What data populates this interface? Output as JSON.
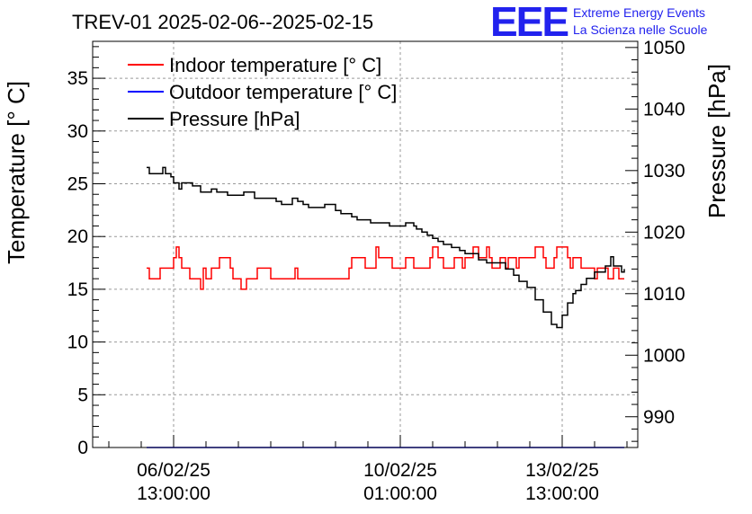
{
  "chart_data": {
    "type": "line",
    "title": "TREV-01 2025-02-06--2025-02-15",
    "ylabel_left": "Temperature [° C]",
    "ylabel_right": "Pressure [hPa]",
    "ylim_left": [
      0,
      38.5
    ],
    "ylim_right": [
      985,
      1051
    ],
    "yticks_left": [
      "0",
      "5",
      "10",
      "15",
      "20",
      "25",
      "30",
      "35"
    ],
    "yticks_right": [
      "990",
      "1000",
      "1010",
      "1020",
      "1030",
      "1040",
      "1050"
    ],
    "x_range_hours": [
      -30,
      172
    ],
    "xticks": [
      {
        "hours": 0,
        "date": "06/02/25",
        "time": "13:00:00"
      },
      {
        "hours": 84,
        "date": "10/02/25",
        "time": "01:00:00"
      },
      {
        "hours": 144,
        "date": "13/02/25",
        "time": "13:00:00"
      }
    ],
    "grid": true,
    "legend_position": "top-left",
    "series": [
      {
        "name": "Indoor temperature [° C]",
        "color": "#ff0000",
        "axis": "left",
        "x": [
          -10,
          -9,
          -8,
          -5,
          -4,
          -3,
          0,
          1,
          2,
          3,
          4,
          6,
          7,
          10,
          11,
          12,
          13,
          14,
          16,
          17,
          20,
          21,
          22,
          25,
          26,
          27,
          30,
          31,
          34,
          35,
          36,
          44,
          45,
          46,
          48,
          49,
          64,
          65,
          66,
          70,
          71,
          72,
          74,
          75,
          76,
          80,
          81,
          82,
          85,
          86,
          88,
          89,
          94,
          95,
          96,
          98,
          99,
          100,
          103,
          104,
          106,
          107,
          108,
          110,
          111,
          113,
          114,
          116,
          117,
          118,
          120,
          121,
          122,
          123,
          124,
          126,
          127,
          128,
          129,
          130,
          133,
          134,
          136,
          137,
          138,
          140,
          141,
          142,
          145,
          146,
          147,
          148,
          150,
          151,
          152,
          155,
          156,
          157,
          160,
          161,
          163,
          164,
          165,
          166,
          167
        ],
        "y": [
          17,
          16,
          16,
          17,
          17,
          17,
          18,
          19,
          18,
          17,
          17,
          16,
          16,
          15,
          17,
          16,
          16,
          17,
          17,
          18,
          18,
          17,
          16,
          15,
          15,
          16,
          16,
          17,
          17,
          17,
          16,
          16,
          17,
          16,
          16,
          16,
          16,
          17,
          18,
          18,
          17,
          17,
          17,
          19,
          18,
          18,
          17,
          17,
          17,
          18,
          18,
          17,
          17,
          18,
          19,
          18,
          18,
          17,
          17,
          18,
          18,
          17,
          18,
          18,
          19,
          18,
          18,
          19,
          18,
          17,
          17,
          18,
          18,
          17,
          18,
          18,
          17,
          18,
          18,
          18,
          18,
          19,
          19,
          18,
          17,
          17,
          18,
          19,
          19,
          18,
          17,
          18,
          18,
          17,
          17,
          17,
          16,
          17,
          17,
          16,
          17,
          17,
          16,
          16,
          16
        ]
      },
      {
        "name": "Outdoor temperature [° C]",
        "color": "#0000ff",
        "axis": "left",
        "x": [
          -10,
          167
        ],
        "y": [
          0,
          0
        ]
      },
      {
        "name": "Pressure [hPa]",
        "color": "#000000",
        "axis": "right",
        "x": [
          -10,
          -9,
          -6,
          -4,
          -3,
          -1,
          0,
          2,
          3,
          6,
          7,
          10,
          14,
          16,
          20,
          24,
          26,
          30,
          33,
          38,
          40,
          43,
          44,
          46,
          48,
          50,
          52,
          56,
          60,
          62,
          64,
          66,
          68,
          70,
          73,
          76,
          80,
          84,
          86,
          89,
          90,
          92,
          94,
          96,
          98,
          100,
          103,
          104,
          106,
          108,
          110,
          113,
          116,
          120,
          123,
          126,
          128,
          131,
          134,
          137,
          140,
          142,
          144,
          146,
          148,
          149,
          151,
          153,
          156,
          160,
          162,
          163,
          166,
          167
        ],
        "y": [
          1030.5,
          1029.5,
          1029.5,
          1030.5,
          1029.5,
          1029,
          1028,
          1027,
          1028,
          1028,
          1027.5,
          1026.5,
          1027,
          1026.5,
          1026,
          1026,
          1026.5,
          1025.5,
          1025.5,
          1025,
          1024.5,
          1024.5,
          1025.5,
          1025,
          1024.5,
          1024,
          1024,
          1024.5,
          1023.5,
          1023,
          1023,
          1022.5,
          1022,
          1022,
          1021.5,
          1021.5,
          1021,
          1021,
          1021.5,
          1021,
          1020.5,
          1020,
          1019.5,
          1019,
          1018.5,
          1018,
          1017.5,
          1017.5,
          1017,
          1016.5,
          1016.5,
          1015.5,
          1015,
          1015,
          1014,
          1013,
          1012,
          1011,
          1009,
          1007,
          1005,
          1004.5,
          1006.5,
          1008.5,
          1010,
          1010.5,
          1011.5,
          1012.5,
          1013.5,
          1014.5,
          1016,
          1014.5,
          1013.5,
          1014
        ]
      }
    ]
  },
  "logo": {
    "mark": "EEE",
    "line1": "Extreme Energy Events",
    "line2": "La Scienza nelle Scuole"
  }
}
